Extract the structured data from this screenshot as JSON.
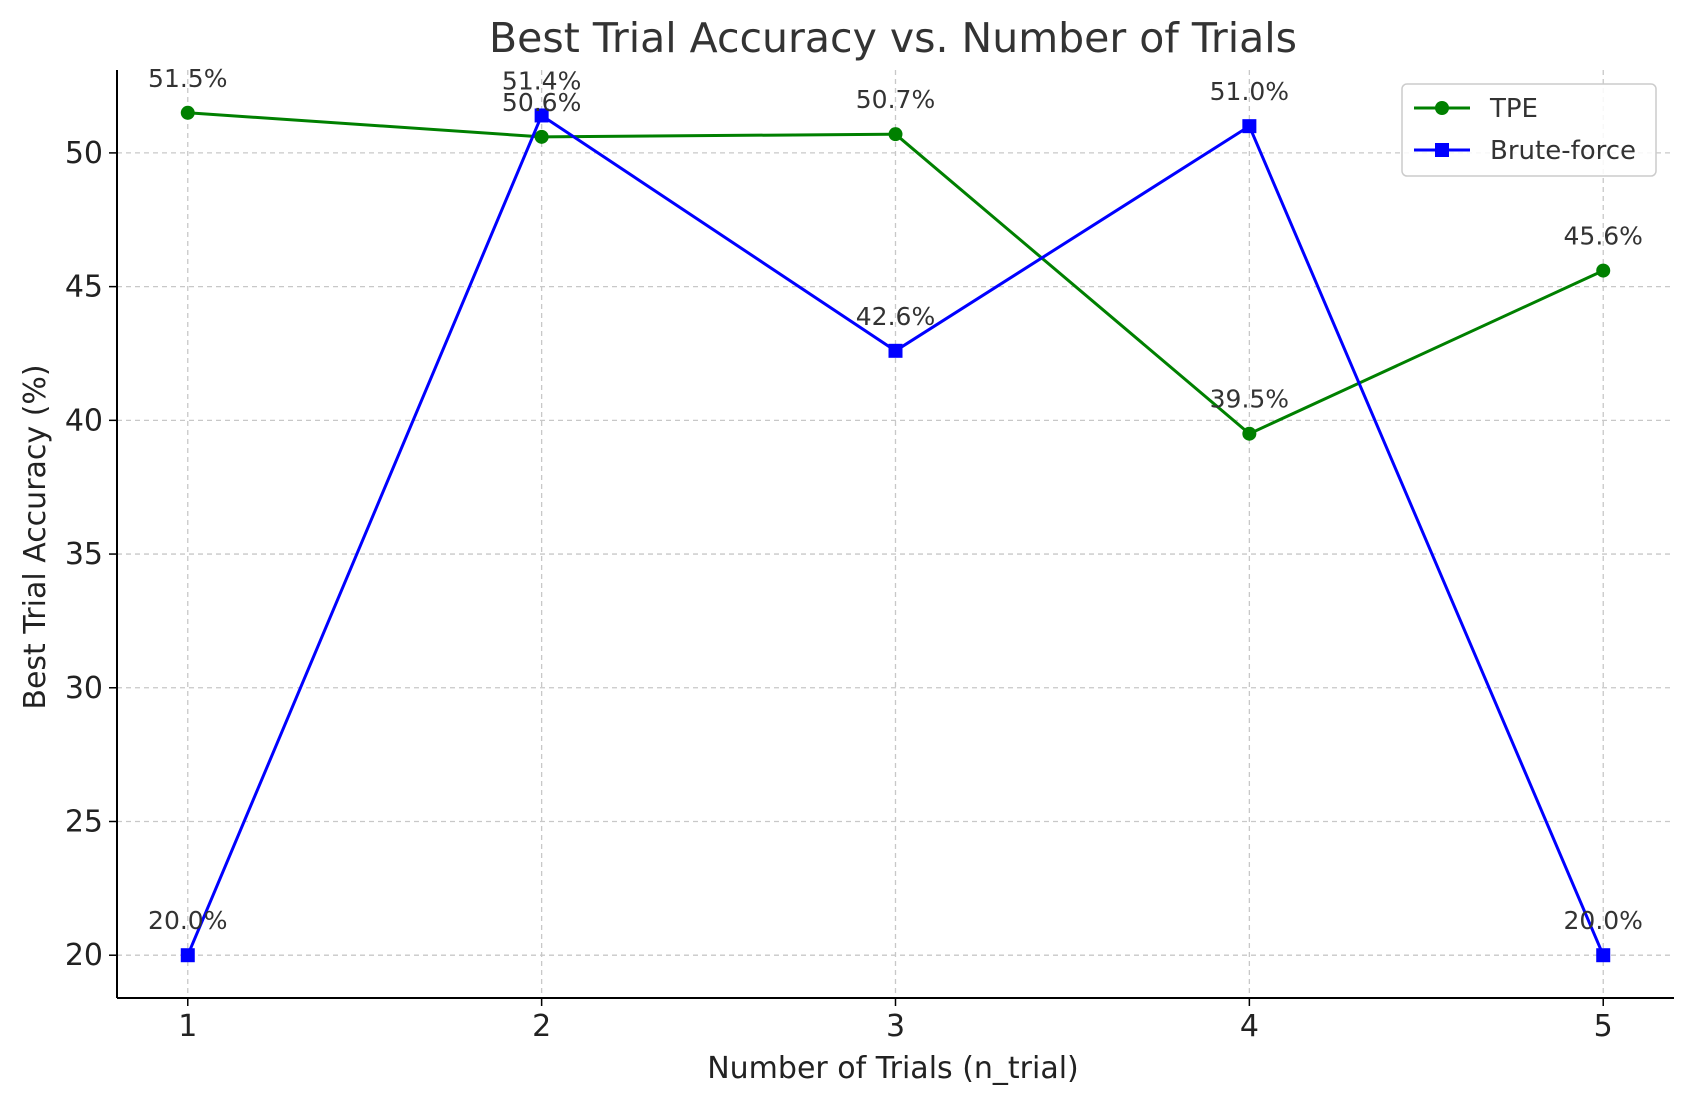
{
  "chart_data": {
    "type": "line",
    "title": "Best Trial Accuracy vs. Number of Trials",
    "xlabel": "Number of Trials (n_trial)",
    "ylabel": "Best Trial Accuracy (%)",
    "x": [
      1,
      2,
      3,
      4,
      5
    ],
    "x_ticks": [
      "1",
      "2",
      "3",
      "4",
      "5"
    ],
    "y_ticks": [
      "20",
      "25",
      "30",
      "35",
      "40",
      "45",
      "50"
    ],
    "xlim": [
      0.8,
      5.2
    ],
    "ylim": [
      18.4,
      53.1
    ],
    "grid": true,
    "legend_position": "top-right",
    "series": [
      {
        "name": "TPE",
        "color": "#008000",
        "marker": "circle",
        "values": [
          51.5,
          50.6,
          50.7,
          39.5,
          45.6
        ],
        "labels": [
          "51.5%",
          "50.6%",
          "50.7%",
          "39.5%",
          "45.6%"
        ]
      },
      {
        "name": "Brute-force",
        "color": "#0000ff",
        "marker": "square",
        "values": [
          20.0,
          51.4,
          42.6,
          51.0,
          20.0
        ],
        "labels": [
          "20.0%",
          "51.4%",
          "42.6%",
          "51.0%",
          "20.0%"
        ]
      }
    ]
  }
}
